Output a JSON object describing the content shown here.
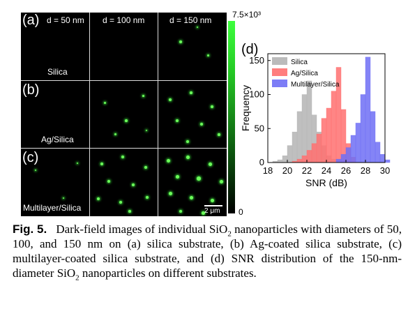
{
  "figure": {
    "columns": [
      "d = 50 nm",
      "d = 100 nm",
      "d = 150 nm"
    ],
    "rows": [
      {
        "letter": "(a)",
        "label": "Silica"
      },
      {
        "letter": "(b)",
        "label": "Ag/Silica"
      },
      {
        "letter": "(c)",
        "label": "Multilayer/Silica"
      }
    ],
    "scalebar": "2 μm",
    "colorbar": {
      "max": "7.5×10³",
      "min": "0"
    },
    "colors": {
      "spot": "#6cff5a",
      "grid": "#dcdcdc"
    }
  },
  "chart_data": {
    "type": "bar",
    "panel_letter": "(d)",
    "xlabel": "SNR (dB)",
    "ylabel": "Frequency",
    "xlim": [
      18,
      30
    ],
    "ylim": [
      0,
      160
    ],
    "xticks": [
      18,
      20,
      22,
      24,
      26,
      28,
      30
    ],
    "yticks": [
      0,
      50,
      100,
      150
    ],
    "legend_position": "top-right",
    "bin_width": 0.5,
    "series": [
      {
        "name": "Silica",
        "color": "#b4b4b4",
        "bins": [
          [
            18.5,
            2
          ],
          [
            19,
            4
          ],
          [
            19.5,
            10
          ],
          [
            20,
            25
          ],
          [
            20.5,
            45
          ],
          [
            21,
            75
          ],
          [
            21.5,
            100
          ],
          [
            22,
            120
          ],
          [
            22.5,
            70
          ],
          [
            23,
            45
          ],
          [
            23.5,
            25
          ],
          [
            24,
            10
          ],
          [
            24.5,
            5
          ]
        ]
      },
      {
        "name": "Ag/Silica",
        "color": "#ff7070",
        "bins": [
          [
            20.5,
            2
          ],
          [
            21,
            5
          ],
          [
            21.5,
            10
          ],
          [
            22,
            18
          ],
          [
            22.5,
            28
          ],
          [
            23,
            42
          ],
          [
            23.5,
            65
          ],
          [
            24,
            80
          ],
          [
            24.5,
            105
          ],
          [
            25,
            140
          ],
          [
            25.5,
            78
          ],
          [
            26,
            28
          ],
          [
            26.5,
            8
          ]
        ]
      },
      {
        "name": "Multilayer/Silica",
        "color": "#6f6ff5",
        "bins": [
          [
            25,
            5
          ],
          [
            25.5,
            12
          ],
          [
            26,
            22
          ],
          [
            26.5,
            40
          ],
          [
            27,
            58
          ],
          [
            27.5,
            100
          ],
          [
            28,
            155
          ],
          [
            28.5,
            75
          ],
          [
            29,
            30
          ],
          [
            29.5,
            12
          ],
          [
            30,
            4
          ]
        ]
      }
    ]
  },
  "caption": {
    "fig_label": "Fig. 5.",
    "text_1": "Dark-field images of individual SiO",
    "sub_1": "2",
    "text_2": " nanoparticles with diameters of 50, 100, and 150 nm on (a) silica substrate, (b) Ag-coated silica substrate, (c) multilayer-coated silica substrate, and (d) SNR distribution of the 150-nm-diameter SiO",
    "sub_2": "2",
    "text_3": " nanoparticles on different substrates."
  }
}
